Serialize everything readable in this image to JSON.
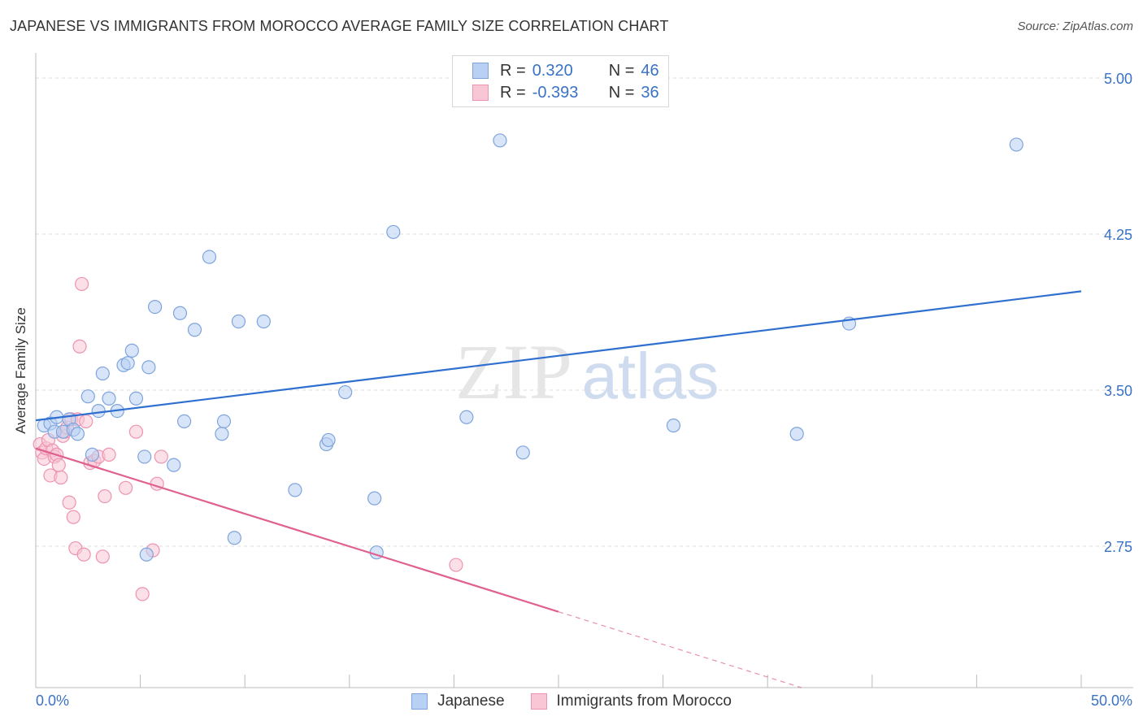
{
  "title": "JAPANESE VS IMMIGRANTS FROM MOROCCO AVERAGE FAMILY SIZE CORRELATION CHART",
  "source": "Source: ZipAtlas.com",
  "watermark": {
    "zip": "ZIP",
    "atlas": "atlas"
  },
  "legend": {
    "r_label": "R =",
    "n_label": "N =",
    "rows": [
      {
        "r": "0.320",
        "n": "46"
      },
      {
        "r": "-0.393",
        "n": "36"
      }
    ]
  },
  "colors": {
    "japanese_fill": "#b8d0f3",
    "japanese_stroke": "#7ea4dd",
    "japanese_line": "#2f6fcf",
    "morocco_fill": "#f8c6d5",
    "morocco_stroke": "#ee93b0",
    "morocco_line": "#e0608f",
    "axis_label": "#3a72c4",
    "grid": "#dddddd"
  },
  "chart_data": {
    "type": "scatter",
    "title": "JAPANESE VS IMMIGRANTS FROM MOROCCO AVERAGE FAMILY SIZE CORRELATION CHART",
    "xlabel": "",
    "ylabel": "Average Family Size",
    "xlim": [
      0,
      50
    ],
    "ylim": [
      2.0,
      5.15
    ],
    "x_tick_labels": [
      "0.0%",
      "50.0%"
    ],
    "y_ticks": [
      2.75,
      3.5,
      4.25,
      5.0
    ],
    "y_tick_labels": [
      "2.75",
      "3.50",
      "4.25",
      "5.00"
    ],
    "grid": true,
    "legend_position": "top-center",
    "series": [
      {
        "name": "Japanese",
        "r": 0.32,
        "n": 46,
        "trend": {
          "x": [
            0,
            50
          ],
          "y": [
            3.355,
            3.975
          ],
          "dashed_from": null
        },
        "points": [
          [
            0.4,
            3.33
          ],
          [
            0.7,
            3.34
          ],
          [
            0.9,
            3.3
          ],
          [
            1.0,
            3.37
          ],
          [
            1.3,
            3.3
          ],
          [
            1.6,
            3.36
          ],
          [
            1.8,
            3.31
          ],
          [
            2.0,
            3.29
          ],
          [
            2.5,
            3.47
          ],
          [
            2.7,
            3.19
          ],
          [
            3.0,
            3.4
          ],
          [
            3.2,
            3.58
          ],
          [
            3.5,
            3.46
          ],
          [
            3.9,
            3.4
          ],
          [
            4.2,
            3.62
          ],
          [
            4.4,
            3.63
          ],
          [
            4.6,
            3.69
          ],
          [
            4.8,
            3.46
          ],
          [
            5.4,
            3.61
          ],
          [
            5.2,
            3.18
          ],
          [
            5.3,
            2.71
          ],
          [
            5.7,
            3.9
          ],
          [
            6.6,
            3.14
          ],
          [
            6.9,
            3.87
          ],
          [
            7.1,
            3.35
          ],
          [
            7.6,
            3.79
          ],
          [
            8.3,
            4.14
          ],
          [
            8.9,
            3.29
          ],
          [
            9.0,
            3.35
          ],
          [
            9.5,
            2.79
          ],
          [
            9.7,
            3.83
          ],
          [
            10.9,
            3.83
          ],
          [
            12.4,
            3.02
          ],
          [
            13.9,
            3.24
          ],
          [
            14.0,
            3.26
          ],
          [
            14.8,
            3.49
          ],
          [
            16.2,
            2.98
          ],
          [
            16.3,
            2.72
          ],
          [
            17.1,
            4.26
          ],
          [
            20.6,
            3.37
          ],
          [
            22.2,
            4.7
          ],
          [
            23.3,
            3.2
          ],
          [
            30.5,
            3.33
          ],
          [
            36.4,
            3.29
          ],
          [
            38.9,
            3.82
          ],
          [
            46.9,
            4.68
          ]
        ]
      },
      {
        "name": "Immigrants from Morocco",
        "r": -0.393,
        "n": 36,
        "trend": {
          "x": [
            0,
            50
          ],
          "y": [
            3.22,
            1.65
          ],
          "dashed_from": 25.0
        },
        "points": [
          [
            0.2,
            3.24
          ],
          [
            0.3,
            3.2
          ],
          [
            0.4,
            3.17
          ],
          [
            0.5,
            3.22
          ],
          [
            0.6,
            3.26
          ],
          [
            0.7,
            3.09
          ],
          [
            0.8,
            3.21
          ],
          [
            0.9,
            3.18
          ],
          [
            1.0,
            3.19
          ],
          [
            1.1,
            3.14
          ],
          [
            1.2,
            3.08
          ],
          [
            1.3,
            3.28
          ],
          [
            1.4,
            3.3
          ],
          [
            1.5,
            3.32
          ],
          [
            1.6,
            2.96
          ],
          [
            1.7,
            3.36
          ],
          [
            1.8,
            2.89
          ],
          [
            1.9,
            2.74
          ],
          [
            2.0,
            3.36
          ],
          [
            2.1,
            3.71
          ],
          [
            2.2,
            4.01
          ],
          [
            2.3,
            2.71
          ],
          [
            2.4,
            3.35
          ],
          [
            2.6,
            3.15
          ],
          [
            2.8,
            3.16
          ],
          [
            3.0,
            3.18
          ],
          [
            3.2,
            2.7
          ],
          [
            3.3,
            2.99
          ],
          [
            3.5,
            3.19
          ],
          [
            4.3,
            3.03
          ],
          [
            4.8,
            3.3
          ],
          [
            5.1,
            2.52
          ],
          [
            5.6,
            2.73
          ],
          [
            5.8,
            3.05
          ],
          [
            6.0,
            3.18
          ],
          [
            20.1,
            2.66
          ]
        ]
      }
    ]
  },
  "bottom_legend": [
    "Japanese",
    "Immigrants from Morocco"
  ]
}
